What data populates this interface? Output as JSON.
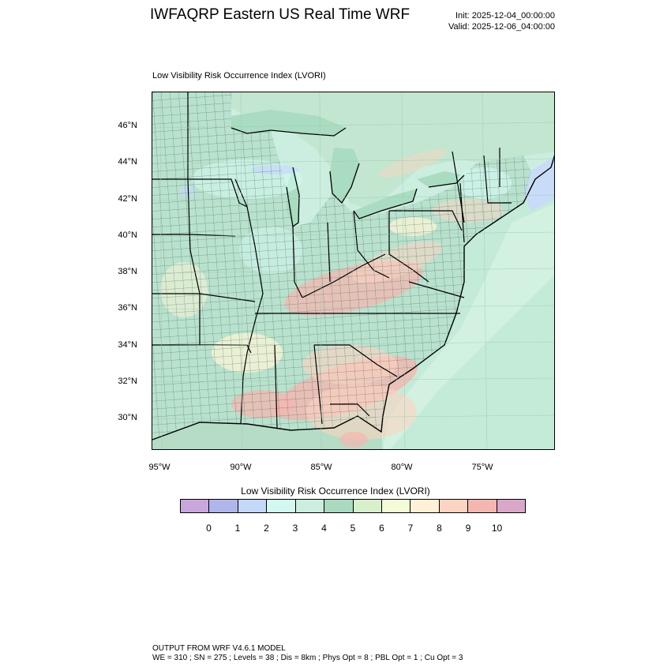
{
  "header": {
    "title": "IWFAQRP Eastern US Real Time WRF",
    "init": "Init: 2025-12-04_00:00:00",
    "valid": "Valid: 2025-12-06_04:00:00"
  },
  "map": {
    "field_label": "Low Visibility Risk Occurrence Index   (LVORI)",
    "lat_labels": [
      "46°N",
      "44°N",
      "42°N",
      "40°N",
      "38°N",
      "36°N",
      "34°N",
      "32°N",
      "30°N"
    ],
    "lon_labels": [
      "95°W",
      "90°W",
      "85°W",
      "80°W",
      "75°W"
    ],
    "colors": {
      "land_base": "#cbeee0",
      "land_dark": "#a9d9bf",
      "water": "#b6dcc6",
      "lake": "#a9dcc0",
      "atlantic": "#c4ebd8",
      "risk_high": "#f3b7b0",
      "risk_mid": "#fcd4c1",
      "risk_low": "#fff6d6"
    }
  },
  "colorbar": {
    "title": "Low Visibility Risk Occurrence Index  (LVORI)",
    "ticks": [
      "0",
      "1",
      "2",
      "3",
      "4",
      "5",
      "6",
      "7",
      "8",
      "9",
      "10"
    ],
    "colors": [
      "#c9a7dc",
      "#b0b5ea",
      "#c4d8fa",
      "#d2f8f0",
      "#cbeee0",
      "#a9d9bf",
      "#d8efcc",
      "#f4fbd9",
      "#fff1d6",
      "#fcd4c1",
      "#f3b7b0",
      "#d9a7c9"
    ]
  },
  "footer": {
    "line1": "OUTPUT FROM WRF V4.6.1 MODEL",
    "line2": "WE = 310 ; SN = 275 ; Levels = 38 ; Dis = 8km ; Phys Opt = 8 ; PBL Opt = 1 ; Cu Opt = 3"
  }
}
